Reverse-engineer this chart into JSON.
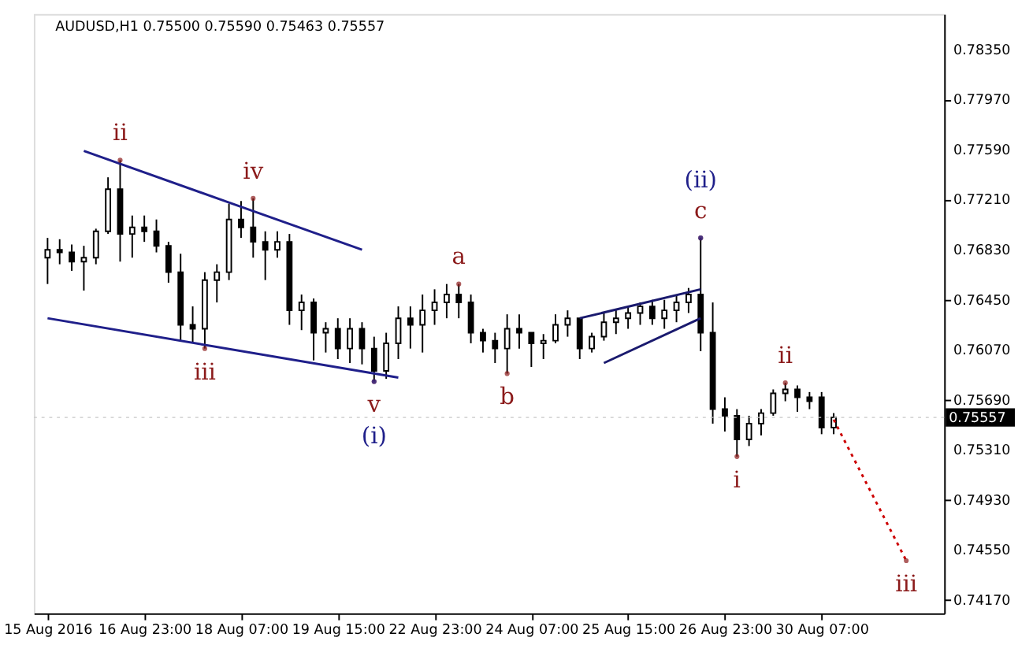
{
  "chart_data": {
    "type": "candlestick",
    "title": "AUDUSD,H1  0.75500 0.75590 0.75463 0.75557",
    "categories": [
      "15 Aug 2016",
      null,
      null,
      null,
      null,
      null,
      null,
      null,
      "16 Aug 23:00",
      null,
      null,
      null,
      null,
      null,
      null,
      null,
      "18 Aug 07:00",
      null,
      null,
      null,
      null,
      null,
      null,
      null,
      "19 Aug 15:00",
      null,
      null,
      null,
      null,
      null,
      null,
      null,
      "22 Aug 23:00",
      null,
      null,
      null,
      null,
      null,
      null,
      null,
      "24 Aug 07:00",
      null,
      null,
      null,
      null,
      null,
      null,
      null,
      "25 Aug 15:00",
      null,
      null,
      null,
      null,
      null,
      null,
      null,
      "26 Aug 23:00",
      null,
      null,
      null,
      null,
      null,
      null,
      null,
      "30 Aug 07:00",
      null,
      null,
      null,
      null,
      null,
      null,
      null,
      null,
      null
    ],
    "ohlc": [
      [
        0.7677,
        0.7692,
        0.7657,
        0.7683
      ],
      [
        0.7683,
        0.7691,
        0.7672,
        0.7681
      ],
      [
        0.7681,
        0.7687,
        0.7667,
        0.7674
      ],
      [
        0.7674,
        0.7686,
        0.7652,
        0.7677
      ],
      [
        0.7677,
        0.7699,
        0.7672,
        0.7697
      ],
      [
        0.7697,
        0.7738,
        0.7695,
        0.7729
      ],
      [
        0.7729,
        0.7751,
        0.7674,
        0.7695
      ],
      [
        0.7695,
        0.7709,
        0.7677,
        0.77
      ],
      [
        0.77,
        0.7709,
        0.7689,
        0.7697
      ],
      [
        0.7697,
        0.7706,
        0.7681,
        0.7686
      ],
      [
        0.7686,
        0.7689,
        0.7658,
        0.7666
      ],
      [
        0.7666,
        0.768,
        0.7614,
        0.7626
      ],
      [
        0.7626,
        0.764,
        0.7612,
        0.7623
      ],
      [
        0.7623,
        0.7666,
        0.7608,
        0.766
      ],
      [
        0.766,
        0.7672,
        0.7643,
        0.7666
      ],
      [
        0.7666,
        0.7718,
        0.766,
        0.7706
      ],
      [
        0.7706,
        0.772,
        0.7692,
        0.77
      ],
      [
        0.77,
        0.7722,
        0.7677,
        0.7689
      ],
      [
        0.7689,
        0.7697,
        0.766,
        0.7683
      ],
      [
        0.7683,
        0.7697,
        0.7677,
        0.7689
      ],
      [
        0.7689,
        0.7695,
        0.7626,
        0.7637
      ],
      [
        0.7637,
        0.7649,
        0.7622,
        0.7643
      ],
      [
        0.7643,
        0.7646,
        0.7599,
        0.762
      ],
      [
        0.762,
        0.7628,
        0.7605,
        0.7623
      ],
      [
        0.7623,
        0.7631,
        0.76,
        0.7608
      ],
      [
        0.7608,
        0.7631,
        0.7597,
        0.7623
      ],
      [
        0.7623,
        0.7628,
        0.7596,
        0.7608
      ],
      [
        0.7608,
        0.7617,
        0.7583,
        0.7591
      ],
      [
        0.7591,
        0.762,
        0.7585,
        0.7612
      ],
      [
        0.7612,
        0.764,
        0.76,
        0.7631
      ],
      [
        0.7631,
        0.764,
        0.7608,
        0.7626
      ],
      [
        0.7626,
        0.7649,
        0.7605,
        0.7637
      ],
      [
        0.7637,
        0.7653,
        0.7626,
        0.7643
      ],
      [
        0.7643,
        0.7657,
        0.7631,
        0.7649
      ],
      [
        0.7649,
        0.7657,
        0.7631,
        0.7643
      ],
      [
        0.7643,
        0.7649,
        0.7612,
        0.762
      ],
      [
        0.762,
        0.7623,
        0.7605,
        0.7614
      ],
      [
        0.7614,
        0.762,
        0.7597,
        0.7608
      ],
      [
        0.7608,
        0.7634,
        0.7589,
        0.7623
      ],
      [
        0.7623,
        0.7634,
        0.7608,
        0.762
      ],
      [
        0.762,
        0.762,
        0.7594,
        0.7612
      ],
      [
        0.7612,
        0.7619,
        0.76,
        0.7614
      ],
      [
        0.7614,
        0.7634,
        0.7612,
        0.7626
      ],
      [
        0.7626,
        0.7637,
        0.7617,
        0.7631
      ],
      [
        0.7631,
        0.7631,
        0.76,
        0.7608
      ],
      [
        0.7608,
        0.762,
        0.7605,
        0.7617
      ],
      [
        0.7617,
        0.7635,
        0.7614,
        0.7628
      ],
      [
        0.7628,
        0.7637,
        0.7619,
        0.7631
      ],
      [
        0.7631,
        0.764,
        0.7623,
        0.7635
      ],
      [
        0.7635,
        0.7643,
        0.7626,
        0.764
      ],
      [
        0.764,
        0.7645,
        0.7626,
        0.7631
      ],
      [
        0.7631,
        0.7645,
        0.7623,
        0.7637
      ],
      [
        0.7637,
        0.7649,
        0.7628,
        0.7643
      ],
      [
        0.7643,
        0.7654,
        0.7635,
        0.7649
      ],
      [
        0.7649,
        0.7692,
        0.7606,
        0.762
      ],
      [
        0.762,
        0.7643,
        0.7551,
        0.7562
      ],
      [
        0.7562,
        0.7571,
        0.7545,
        0.7557
      ],
      [
        0.7557,
        0.7562,
        0.7526,
        0.7539
      ],
      [
        0.7539,
        0.7557,
        0.7534,
        0.7551
      ],
      [
        0.7551,
        0.7562,
        0.7542,
        0.7559
      ],
      [
        0.7559,
        0.7577,
        0.7557,
        0.7574
      ],
      [
        0.7574,
        0.7582,
        0.7568,
        0.7577
      ],
      [
        0.7577,
        0.758,
        0.756,
        0.7571
      ],
      [
        0.7571,
        0.7575,
        0.7562,
        0.7568
      ],
      [
        0.7571,
        0.7575,
        0.7543,
        0.7548
      ],
      [
        0.7548,
        0.7559,
        0.7543,
        0.75557
      ],
      null,
      null,
      null,
      null,
      null,
      null,
      null,
      null
    ],
    "series": [
      {
        "type": "line",
        "color": "#1f1f8a",
        "values": [
          null,
          null,
          null,
          0.7758,
          null,
          null,
          null,
          null,
          null,
          null,
          null,
          null,
          null,
          null,
          null,
          null,
          null,
          null,
          null,
          null,
          null,
          null,
          null,
          null,
          null,
          null,
          0.7683,
          null,
          null,
          null,
          null,
          null,
          null,
          null,
          null,
          null,
          null,
          null,
          null,
          null,
          null,
          null,
          null,
          null,
          null,
          null,
          null,
          null,
          null,
          null,
          null,
          null,
          null,
          null,
          null,
          null,
          null,
          null,
          null,
          null,
          null,
          null,
          null,
          null,
          null,
          null,
          null,
          null,
          null,
          null,
          null,
          null,
          null,
          null
        ]
      },
      {
        "type": "line",
        "color": "#1f1f8a",
        "values": [
          0.7631,
          null,
          null,
          null,
          null,
          null,
          null,
          null,
          null,
          null,
          null,
          null,
          null,
          null,
          null,
          null,
          null,
          null,
          null,
          null,
          null,
          null,
          null,
          null,
          null,
          null,
          null,
          null,
          null,
          0.7586,
          null,
          null,
          null,
          null,
          null,
          null,
          null,
          null,
          null,
          null,
          null,
          null,
          null,
          null,
          null,
          null,
          null,
          null,
          null,
          null,
          null,
          null,
          null,
          null,
          null,
          null,
          null,
          null,
          null,
          null,
          null,
          null,
          null,
          null,
          null,
          null,
          null,
          null,
          null,
          null,
          null,
          null,
          null,
          null
        ]
      },
      {
        "type": "line",
        "color": "#1a1a6e",
        "values": [
          null,
          null,
          null,
          null,
          null,
          null,
          null,
          null,
          null,
          null,
          null,
          null,
          null,
          null,
          null,
          null,
          null,
          null,
          null,
          null,
          null,
          null,
          null,
          null,
          null,
          null,
          null,
          null,
          null,
          null,
          null,
          null,
          null,
          null,
          null,
          null,
          null,
          null,
          null,
          null,
          null,
          null,
          null,
          null,
          0.7631,
          null,
          null,
          null,
          null,
          null,
          null,
          null,
          null,
          null,
          0.7653,
          null,
          null,
          null,
          null,
          null,
          null,
          null,
          null,
          null,
          null,
          null,
          null,
          null,
          null,
          null,
          null,
          null,
          null,
          null
        ]
      },
      {
        "type": "line",
        "color": "#1a1a6e",
        "values": [
          null,
          null,
          null,
          null,
          null,
          null,
          null,
          null,
          null,
          null,
          null,
          null,
          null,
          null,
          null,
          null,
          null,
          null,
          null,
          null,
          null,
          null,
          null,
          null,
          null,
          null,
          null,
          null,
          null,
          null,
          null,
          null,
          null,
          null,
          null,
          null,
          null,
          null,
          null,
          null,
          null,
          null,
          null,
          null,
          null,
          null,
          0.7597,
          null,
          null,
          null,
          null,
          null,
          null,
          null,
          0.7631,
          null,
          null,
          null,
          null,
          null,
          null,
          null,
          null,
          null,
          null,
          null,
          null,
          null,
          null,
          null,
          null,
          null,
          null,
          null
        ]
      },
      {
        "type": "line",
        "color": "#cc0000",
        "line_style": "dotted",
        "values": [
          null,
          null,
          null,
          null,
          null,
          null,
          null,
          null,
          null,
          null,
          null,
          null,
          null,
          null,
          null,
          null,
          null,
          null,
          null,
          null,
          null,
          null,
          null,
          null,
          null,
          null,
          null,
          null,
          null,
          null,
          null,
          null,
          null,
          null,
          null,
          null,
          null,
          null,
          null,
          null,
          null,
          null,
          null,
          null,
          null,
          null,
          null,
          null,
          null,
          null,
          null,
          null,
          null,
          null,
          null,
          null,
          null,
          null,
          null,
          null,
          null,
          null,
          null,
          null,
          null,
          0.7554,
          null,
          null,
          null,
          null,
          null,
          0.7447,
          null,
          null
        ]
      },
      {
        "type": "scatter",
        "marker": "circle",
        "color": "#8b1a1a",
        "values": [
          null,
          null,
          null,
          null,
          null,
          null,
          0.7751,
          null,
          null,
          null,
          null,
          null,
          null,
          0.7608,
          null,
          null,
          null,
          0.7722,
          null,
          null,
          null,
          null,
          null,
          null,
          null,
          null,
          null,
          0.7583,
          null,
          null,
          null,
          null,
          null,
          null,
          0.7657,
          null,
          null,
          null,
          0.7589,
          null,
          null,
          null,
          null,
          null,
          null,
          null,
          null,
          null,
          null,
          null,
          null,
          null,
          null,
          null,
          0.7692,
          null,
          null,
          0.7526,
          null,
          null,
          null,
          0.7582,
          null,
          null,
          null,
          null,
          null,
          null,
          null,
          null,
          null,
          0.7447,
          null,
          null
        ],
        "value_labels": [
          null,
          null,
          null,
          null,
          null,
          null,
          "ii",
          null,
          null,
          null,
          null,
          null,
          null,
          "iii",
          null,
          null,
          null,
          "iv",
          null,
          null,
          null,
          null,
          null,
          null,
          null,
          null,
          null,
          "v",
          null,
          null,
          null,
          null,
          null,
          null,
          "a",
          null,
          null,
          null,
          "b",
          null,
          null,
          null,
          null,
          null,
          null,
          null,
          null,
          null,
          null,
          null,
          null,
          null,
          null,
          null,
          "c",
          null,
          null,
          "i",
          null,
          null,
          null,
          "ii",
          null,
          null,
          null,
          null,
          null,
          null,
          null,
          null,
          null,
          "iii",
          null,
          null
        ]
      },
      {
        "type": "scatter",
        "marker": "circle",
        "color": "#1f1f8a",
        "values": [
          null,
          null,
          null,
          null,
          null,
          null,
          null,
          null,
          null,
          null,
          null,
          null,
          null,
          null,
          null,
          null,
          null,
          null,
          null,
          null,
          null,
          null,
          null,
          null,
          null,
          null,
          null,
          0.7583,
          null,
          null,
          null,
          null,
          null,
          null,
          null,
          null,
          null,
          null,
          null,
          null,
          null,
          null,
          null,
          null,
          null,
          null,
          null,
          null,
          null,
          null,
          null,
          null,
          null,
          null,
          0.7692,
          null,
          null,
          null,
          null,
          null,
          null,
          null,
          null,
          null,
          null,
          null,
          null,
          null,
          null,
          null,
          null,
          null,
          null,
          null
        ],
        "value_labels": [
          null,
          null,
          null,
          null,
          null,
          null,
          null,
          null,
          null,
          null,
          null,
          null,
          null,
          null,
          null,
          null,
          null,
          null,
          null,
          null,
          null,
          null,
          null,
          null,
          null,
          null,
          null,
          "(i)",
          null,
          null,
          null,
          null,
          null,
          null,
          null,
          null,
          null,
          null,
          null,
          null,
          null,
          null,
          null,
          null,
          null,
          null,
          null,
          null,
          null,
          null,
          null,
          null,
          null,
          null,
          "(ii)",
          null,
          null,
          null,
          null,
          null,
          null,
          null,
          null,
          null,
          null,
          null,
          null,
          null,
          null,
          null,
          null,
          null,
          null,
          null
        ]
      }
    ],
    "ref_lines": [
      {
        "axis": "y",
        "value": 0.75557,
        "label": "0.75557"
      }
    ],
    "ylim": [
      0.7407,
      0.7862
    ],
    "yticks": [
      {
        "value": 0.7835,
        "label": "0.78350"
      },
      {
        "value": 0.7797,
        "label": "0.77970"
      },
      {
        "value": 0.7759,
        "label": "0.77590"
      },
      {
        "value": 0.7721,
        "label": "0.77210"
      },
      {
        "value": 0.7683,
        "label": "0.76830"
      },
      {
        "value": 0.7645,
        "label": "0.76450"
      },
      {
        "value": 0.7607,
        "label": "0.76070"
      },
      {
        "value": 0.7569,
        "label": "0.75690"
      },
      {
        "value": 0.7531,
        "label": "0.75310"
      },
      {
        "value": 0.7493,
        "label": "0.74930"
      },
      {
        "value": 0.7455,
        "label": "0.74550"
      },
      {
        "value": 0.7417,
        "label": "0.74170"
      }
    ]
  }
}
